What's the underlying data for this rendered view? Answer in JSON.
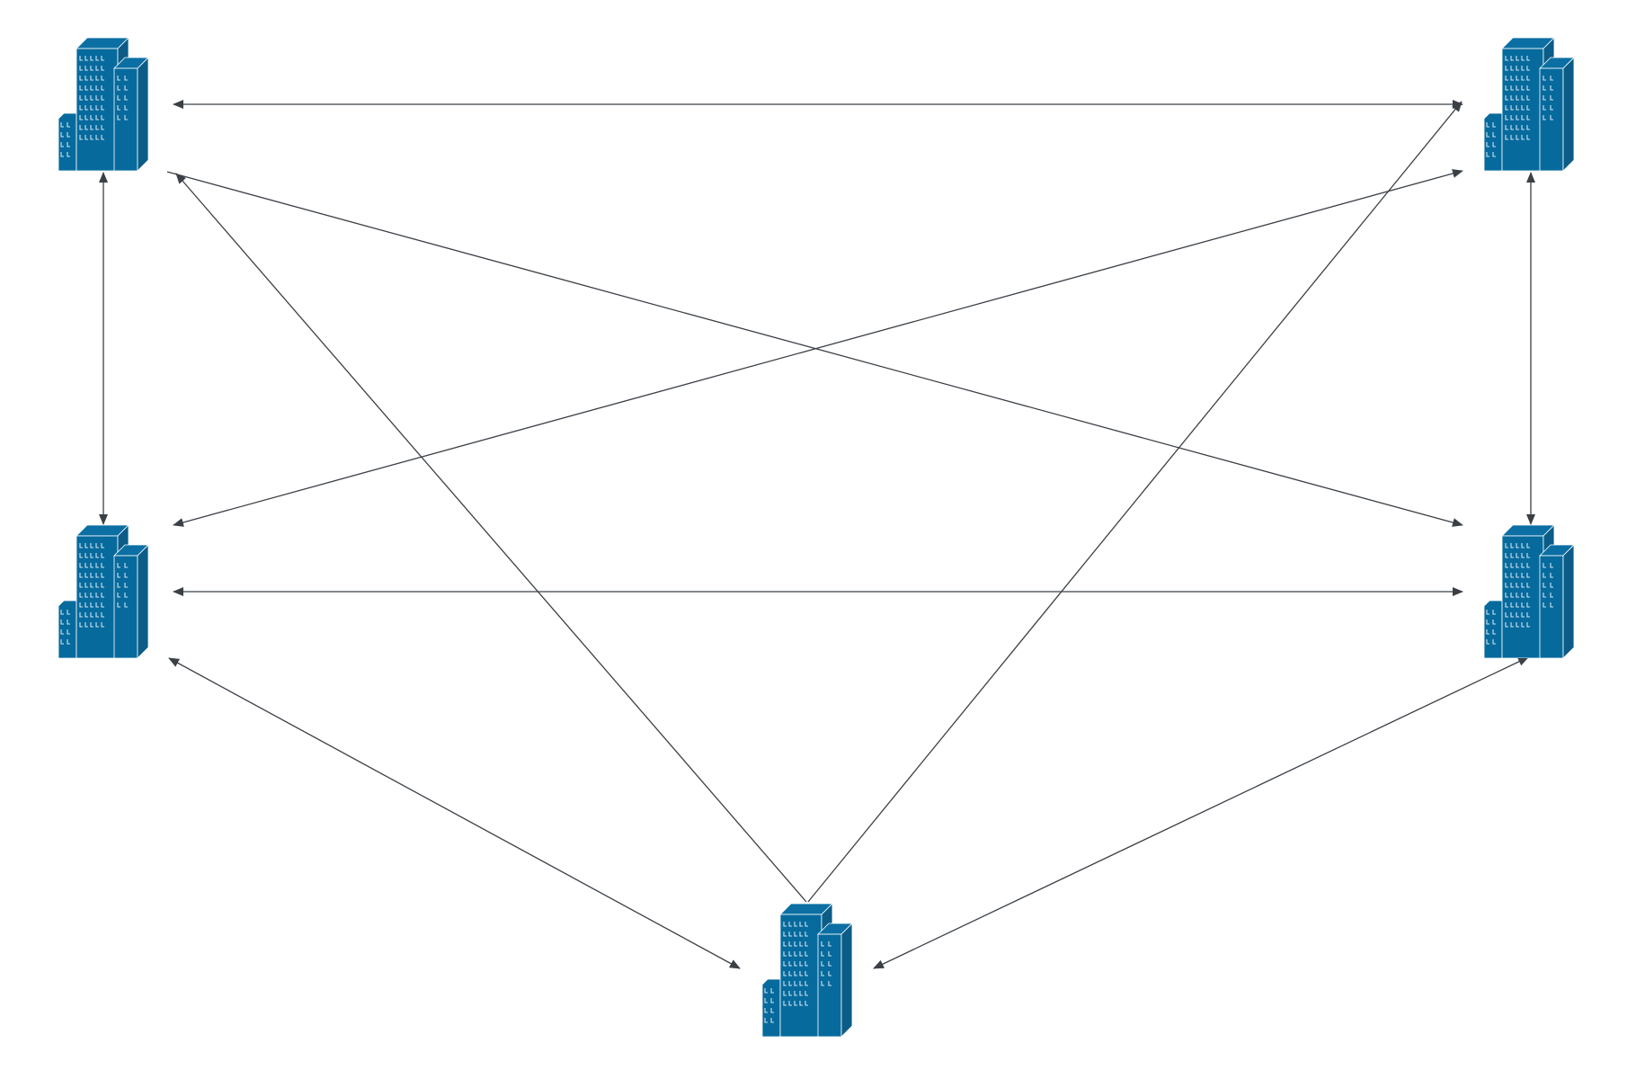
{
  "diagram": {
    "colors": {
      "background": "#ffffff",
      "connector": "#3b4047",
      "building_front": "#066a9d",
      "building_side": "#0b5c87",
      "building_outline": "#ffffff",
      "building_window": "#cfe3f0"
    },
    "nodes": [
      {
        "id": "building-top-left",
        "icon": "office-building-icon"
      },
      {
        "id": "building-top-right",
        "icon": "office-building-icon"
      },
      {
        "id": "building-middle-left",
        "icon": "office-building-icon"
      },
      {
        "id": "building-middle-right",
        "icon": "office-building-icon"
      },
      {
        "id": "building-bottom-center",
        "icon": "office-building-icon"
      }
    ],
    "connections": [
      {
        "from": "building-top-left",
        "to": "building-top-right",
        "arrows": "both"
      },
      {
        "from": "building-top-left",
        "to": "building-middle-left",
        "arrows": "both"
      },
      {
        "from": "building-top-right",
        "to": "building-middle-right",
        "arrows": "both"
      },
      {
        "from": "building-middle-left",
        "to": "building-middle-right",
        "arrows": "both"
      },
      {
        "from": "building-top-left",
        "to": "building-middle-right",
        "arrows": "end"
      },
      {
        "from": "building-top-right",
        "to": "building-middle-left",
        "arrows": "both"
      },
      {
        "from": "building-bottom-center",
        "to": "building-top-left",
        "arrows": "end"
      },
      {
        "from": "building-bottom-center",
        "to": "building-top-right",
        "arrows": "end"
      },
      {
        "from": "building-middle-left",
        "to": "building-bottom-center",
        "arrows": "both"
      },
      {
        "from": "building-middle-right",
        "to": "building-bottom-center",
        "arrows": "both"
      }
    ]
  }
}
